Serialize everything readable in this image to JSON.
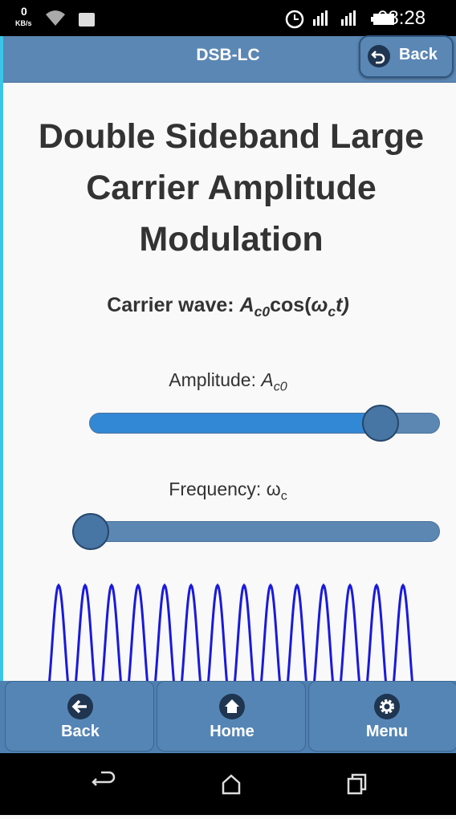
{
  "status_bar": {
    "speed_value": "0",
    "speed_unit": "KB/s",
    "time": "08:28"
  },
  "header": {
    "title": "DSB-LC",
    "back_button": "Back"
  },
  "content": {
    "title": "Double Sideband Large Carrier Amplitude Modulation",
    "carrier": {
      "label": "Carrier wave:",
      "amp_symbol": "A",
      "amp_sub": "c0",
      "func": "cos(",
      "freq_symbol": "ω",
      "freq_sub": "c",
      "tail": "t)"
    },
    "sliders": [
      {
        "label": "Amplitude:",
        "symbol": "A",
        "sub": "c0",
        "value": 0.87
      },
      {
        "label": "Frequency:",
        "symbol": "ω",
        "sub": "c",
        "value": 0
      }
    ]
  },
  "footer": {
    "buttons": [
      "Back",
      "Home",
      "Menu"
    ]
  }
}
